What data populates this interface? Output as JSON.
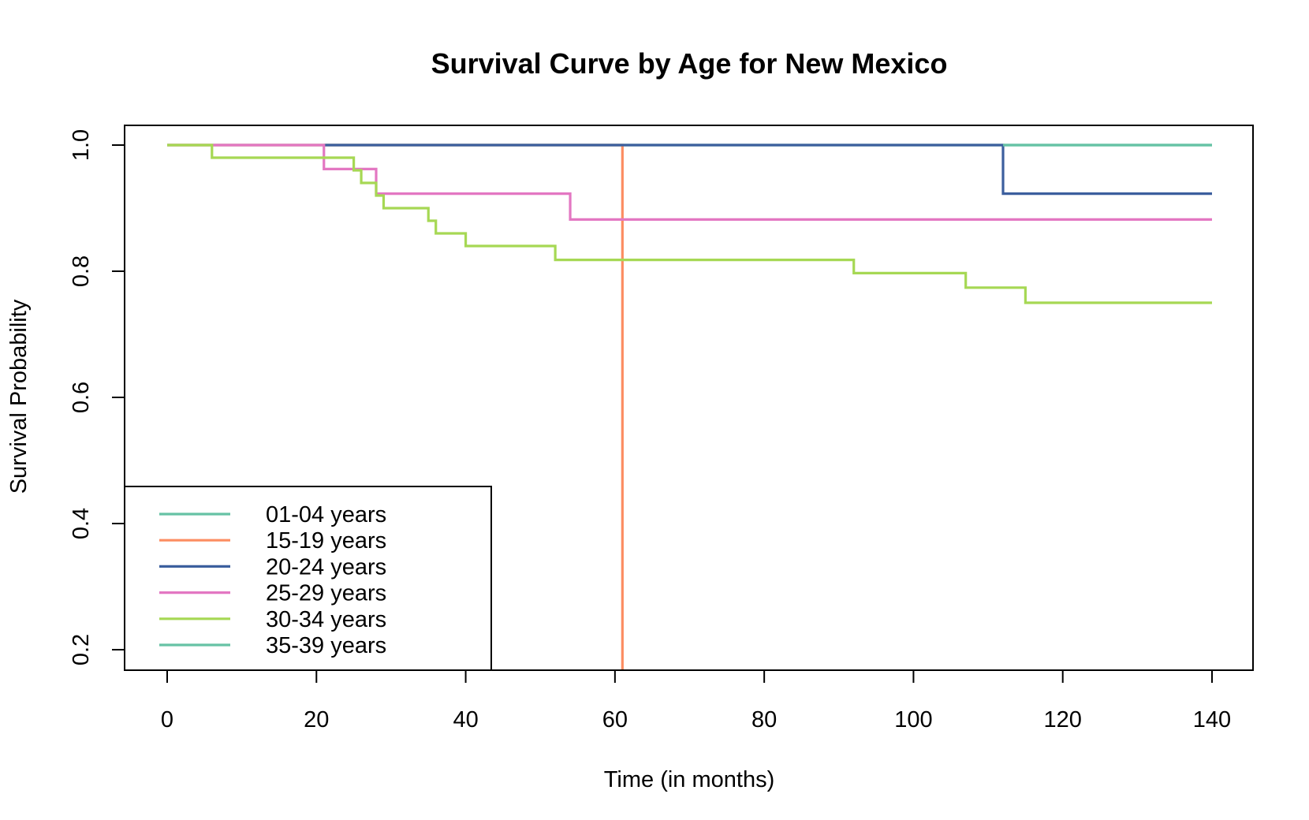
{
  "chart_data": {
    "type": "line",
    "step": true,
    "title": "Survival Curve by Age for New Mexico",
    "xlabel": "Time (in months)",
    "ylabel": "Survival Probability",
    "xlim": [
      0,
      140
    ],
    "ylim": [
      0.2,
      1.0
    ],
    "xticks": [
      0,
      20,
      40,
      60,
      80,
      100,
      120,
      140
    ],
    "yticks": [
      0.2,
      0.4,
      0.6,
      0.8,
      1.0
    ],
    "ytick_labels": [
      "0.2",
      "0.4",
      "0.6",
      "0.8",
      "1.0"
    ],
    "grid": false,
    "legend_position": "bottom-left",
    "series": [
      {
        "name": "01-04 years",
        "color": "#66c2a5",
        "x": [
          0,
          140
        ],
        "y": [
          1.0,
          1.0
        ]
      },
      {
        "name": "15-19 years",
        "color": "#fc8d62",
        "x": [
          0,
          61,
          61
        ],
        "y": [
          1.0,
          1.0,
          0.0
        ]
      },
      {
        "name": "20-24 years",
        "color": "#3c5f9e",
        "x": [
          21,
          112,
          140
        ],
        "y": [
          1.0,
          0.923,
          0.923
        ]
      },
      {
        "name": "25-29 years",
        "color": "#e377c2",
        "x": [
          0,
          21,
          28,
          54,
          140
        ],
        "y": [
          1.0,
          0.962,
          0.923,
          0.882,
          0.882
        ]
      },
      {
        "name": "30-34 years",
        "color": "#a6d854",
        "x": [
          0,
          6,
          25,
          26,
          28,
          29,
          35,
          36,
          40,
          52,
          92,
          107,
          115,
          140
        ],
        "y": [
          1.0,
          0.98,
          0.96,
          0.94,
          0.92,
          0.9,
          0.88,
          0.86,
          0.84,
          0.818,
          0.797,
          0.774,
          0.75,
          0.75
        ]
      },
      {
        "name": "35-39 years",
        "color": "#66c2a5",
        "x": [
          112,
          140
        ],
        "y": [
          1.0,
          1.0
        ]
      }
    ]
  }
}
